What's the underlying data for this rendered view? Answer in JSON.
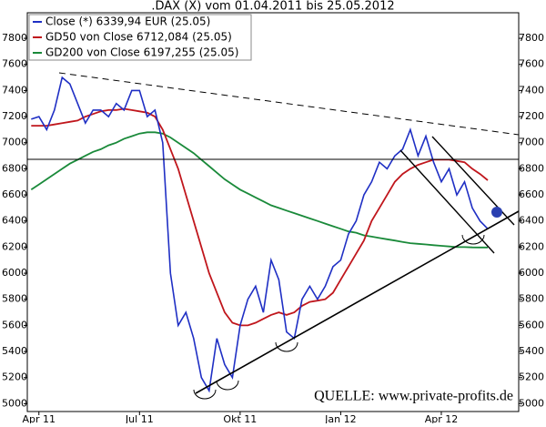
{
  "chart_data": {
    "type": "line",
    "title": ".DAX (X) vom 01.04.2011 bis 25.05.2012",
    "annotations": [
      "QUELLE: www.private-profits.de"
    ],
    "categories": [
      null,
      "Apr 11",
      null,
      null,
      null,
      null,
      null,
      null,
      null,
      null,
      null,
      null,
      null,
      null,
      "Jul 11",
      null,
      null,
      null,
      null,
      null,
      null,
      null,
      null,
      null,
      null,
      null,
      null,
      "Okt 11",
      null,
      null,
      null,
      null,
      null,
      null,
      null,
      null,
      null,
      null,
      null,
      null,
      "Jan 12",
      null,
      null,
      null,
      null,
      null,
      null,
      null,
      null,
      null,
      null,
      null,
      null,
      "Apr 12",
      null,
      null,
      null,
      null,
      null,
      null
    ],
    "series": [
      {
        "name": "Close (*) 6339,94 EUR (25.05)",
        "color": "#1f2fc4",
        "values": [
          7180,
          7200,
          7100,
          7250,
          7500,
          7450,
          7300,
          7150,
          7250,
          7250,
          7200,
          7300,
          7250,
          7400,
          7400,
          7200,
          7250,
          7000,
          6000,
          5600,
          5700,
          5500,
          5200,
          5100,
          5500,
          5300,
          5200,
          5600,
          5800,
          5900,
          5700,
          6100,
          5950,
          5550,
          5500,
          5800,
          5900,
          5800,
          5900,
          6050,
          6100,
          6300,
          6400,
          6600,
          6700,
          6850,
          6800,
          6900,
          6950,
          7100,
          6900,
          7050,
          6850,
          6700,
          6800,
          6600,
          6700,
          6500,
          6400,
          6339.94
        ]
      },
      {
        "name": "GD50 von Close 6712,084 (25.05)",
        "color": "#c0161c",
        "values": [
          7130,
          7130,
          7130,
          7140,
          7150,
          7160,
          7170,
          7200,
          7220,
          7240,
          7250,
          7250,
          7260,
          7250,
          7240,
          7230,
          7200,
          7100,
          6950,
          6800,
          6600,
          6400,
          6200,
          6000,
          5850,
          5700,
          5620,
          5600,
          5600,
          5620,
          5650,
          5680,
          5700,
          5680,
          5700,
          5750,
          5780,
          5790,
          5800,
          5850,
          5950,
          6050,
          6150,
          6250,
          6400,
          6500,
          6600,
          6700,
          6760,
          6800,
          6830,
          6850,
          6870,
          6870,
          6870,
          6860,
          6850,
          6800,
          6760,
          6712.084
        ]
      },
      {
        "name": "GD200 von Close 6197,255 (25.05)",
        "color": "#1a8a3a",
        "values": [
          6640,
          6680,
          6720,
          6760,
          6800,
          6840,
          6870,
          6900,
          6930,
          6950,
          6980,
          7000,
          7030,
          7050,
          7070,
          7080,
          7080,
          7070,
          7040,
          7000,
          6960,
          6920,
          6870,
          6820,
          6770,
          6720,
          6680,
          6640,
          6610,
          6580,
          6550,
          6520,
          6500,
          6480,
          6460,
          6440,
          6420,
          6400,
          6380,
          6360,
          6340,
          6320,
          6310,
          6290,
          6280,
          6270,
          6260,
          6250,
          6240,
          6230,
          6225,
          6220,
          6215,
          6210,
          6205,
          6200,
          6200,
          6198,
          6197,
          6197.255
        ]
      }
    ],
    "ylim": [
      4940,
      7940
    ],
    "yticks": [
      5000,
      5200,
      5400,
      5600,
      5800,
      6000,
      6200,
      6400,
      6600,
      6800,
      7000,
      7200,
      7400,
      7600,
      7800
    ],
    "grid": false
  }
}
